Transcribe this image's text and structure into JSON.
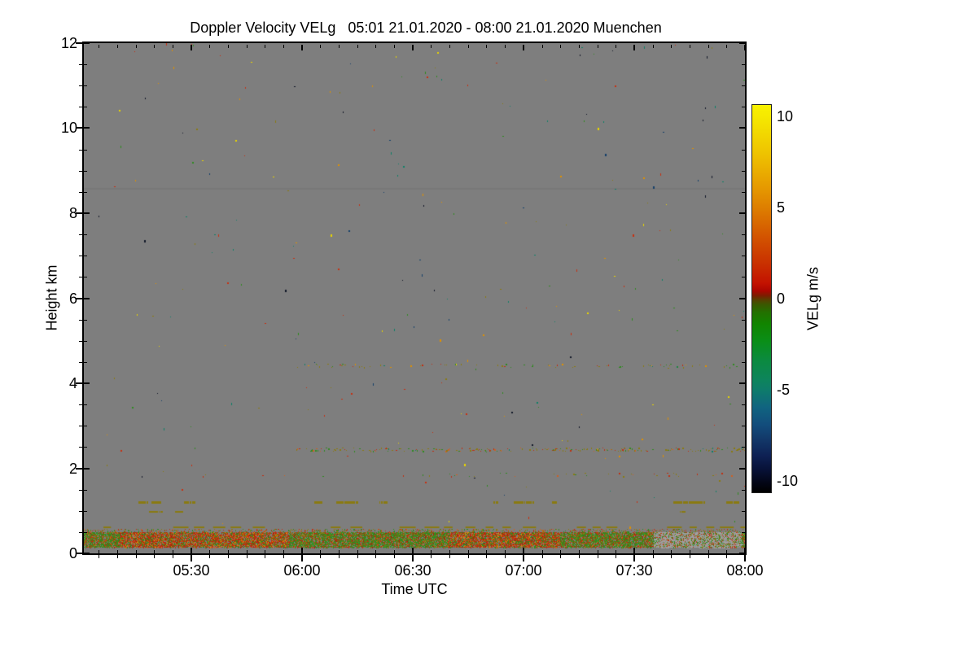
{
  "title": "Doppler Velocity VELg   05:01 21.01.2020 - 08:00 21.01.2020 Muenchen",
  "axes": {
    "x": {
      "label": "Time UTC",
      "start_minutes": 301,
      "end_minutes": 480,
      "minor_step_minutes": 5,
      "major_ticks": [
        {
          "minutes": 330,
          "label": "05:30"
        },
        {
          "minutes": 360,
          "label": "06:00"
        },
        {
          "minutes": 390,
          "label": "06:30"
        },
        {
          "minutes": 420,
          "label": "07:00"
        },
        {
          "minutes": 450,
          "label": "07:30"
        },
        {
          "minutes": 480,
          "label": "08:00"
        }
      ]
    },
    "y": {
      "label": "Height km",
      "min": 0,
      "max": 12,
      "major_step": 2,
      "minor_step": 0.5,
      "major_ticks": [
        {
          "value": 0,
          "label": "0"
        },
        {
          "value": 2,
          "label": "2"
        },
        {
          "value": 4,
          "label": "4"
        },
        {
          "value": 6,
          "label": "6"
        },
        {
          "value": 8,
          "label": "8"
        },
        {
          "value": 10,
          "label": "10"
        },
        {
          "value": 12,
          "label": "12"
        }
      ]
    }
  },
  "plot": {
    "background": "#7e7e7e",
    "frame_color": "#000000"
  },
  "colorbar": {
    "label": "VELg m/s",
    "vmin": -10.67,
    "vmax": 10.67,
    "minor_step": 1,
    "major_ticks": [
      {
        "value": 10,
        "label": "10"
      },
      {
        "value": 5,
        "label": "5"
      },
      {
        "value": 0,
        "label": "0"
      },
      {
        "value": -5,
        "label": "-5"
      },
      {
        "value": -10,
        "label": "-10"
      }
    ],
    "gradient": [
      [
        0.0,
        "#f9f200"
      ],
      [
        0.03,
        "#f5e900"
      ],
      [
        0.13,
        "#eec100"
      ],
      [
        0.21,
        "#e69b00"
      ],
      [
        0.27,
        "#dd7c00"
      ],
      [
        0.34,
        "#d35400"
      ],
      [
        0.41,
        "#c93000"
      ],
      [
        0.46,
        "#c31200"
      ],
      [
        0.48,
        "#ab0600"
      ],
      [
        0.492,
        "#7c1c00"
      ],
      [
        0.503,
        "#564000"
      ],
      [
        0.515,
        "#3a5800"
      ],
      [
        0.535,
        "#237000"
      ],
      [
        0.565,
        "#118400"
      ],
      [
        0.61,
        "#0a8e18"
      ],
      [
        0.66,
        "#0b8a40"
      ],
      [
        0.71,
        "#0d845c"
      ],
      [
        0.735,
        "#0e7c6a"
      ],
      [
        0.78,
        "#106480"
      ],
      [
        0.825,
        "#124d7c"
      ],
      [
        0.865,
        "#123768"
      ],
      [
        0.905,
        "#0e2154"
      ],
      [
        0.945,
        "#071034"
      ],
      [
        0.975,
        "#030616"
      ],
      [
        1.0,
        "#000000"
      ]
    ]
  },
  "chart_data": {
    "type": "heatmap",
    "title": "Doppler Velocity VELg   05:01 21.01.2020 - 08:00 21.01.2020 Muenchen",
    "xlabel": "Time UTC",
    "ylabel": "Height km",
    "x_range": [
      "05:01",
      "08:00"
    ],
    "x_tick_labels": [
      "05:30",
      "06:00",
      "06:30",
      "07:00",
      "07:30",
      "08:00"
    ],
    "y_range_km": [
      0,
      12
    ],
    "y_tick_labels": [
      "0",
      "2",
      "4",
      "6",
      "8",
      "10",
      "12"
    ],
    "value_label": "VELg m/s",
    "value_range": [
      -10.67,
      10.67
    ],
    "colorbar_tick_labels": [
      "10",
      "5",
      "0",
      "-5",
      "-10"
    ],
    "no_data_color_note": "uniform gray background = no signal",
    "features": [
      {
        "height_km": [
          0.14,
          0.5
        ],
        "time": [
          "05:01",
          "08:00"
        ],
        "description": "Dense near-surface echo band of mixed green (VELg ~ -1 to -3 m/s) and red (VELg ~ +1 to +3 m/s) speckle; red dominant ~05:15-05:55 and ~06:40-07:10; grayish streaky gaps after ~07:35"
      },
      {
        "height_km": 0.63,
        "time": [
          "05:05",
          "08:00"
        ],
        "description": "Intermittent olive dashed layer, VELg near 0 m/s"
      },
      {
        "height_km": 1.0,
        "time": [
          "05:20",
          "05:30"
        ],
        "description": "Short olive dash segments, VELg near 0 m/s"
      },
      {
        "height_km": 1.22,
        "time": [
          "05:16",
          "08:00"
        ],
        "description": "Broken olive dashed layer segments, VELg near 0 m/s"
      },
      {
        "height_km": 1.86,
        "time": [
          "06:30",
          "08:00"
        ],
        "description": "Sparse speckle layer, olive/green/red"
      },
      {
        "height_km": 2.45,
        "time": [
          "06:00",
          "08:00"
        ],
        "description": "Thin speckled layer, olive/green/red/orange"
      },
      {
        "height_km": 4.42,
        "time": [
          "06:00",
          "08:00"
        ],
        "description": "Thin sparse speckled layer, olive/green/orange/red"
      },
      {
        "height_km": 8.6,
        "time": [
          "05:01",
          "08:00"
        ],
        "description": "Very faint slightly darker gray horizontal line"
      },
      {
        "height_km": [
          0.5,
          12
        ],
        "description": "Isolated random noise pixels (yellow, orange, red, green, teal, navy, black) scattered in clear air"
      }
    ],
    "render": {
      "seed": 1234567,
      "palettes": {
        "surface_green": [
          [
            "#2f8b1f",
            38
          ],
          [
            "#3f9427",
            14
          ],
          [
            "#c03010",
            16
          ],
          [
            "#a42508",
            7
          ],
          [
            "#8a7a10",
            12
          ],
          [
            "#d06020",
            5
          ],
          [
            "#667012",
            8
          ]
        ],
        "surface_red": [
          [
            "#c03010",
            36
          ],
          [
            "#a42508",
            14
          ],
          [
            "#d06020",
            12
          ],
          [
            "#2f8b1f",
            22
          ],
          [
            "#8a7a10",
            11
          ],
          [
            "#e09000",
            5
          ]
        ],
        "surface_gray": [
          [
            "#a0a0a0",
            40
          ],
          [
            "#909090",
            18
          ],
          [
            "#2f8b1f",
            16
          ],
          [
            "#c03010",
            14
          ],
          [
            "#8a7a10",
            12
          ]
        ],
        "sparse_top": [
          [
            "#8a7a10",
            30
          ],
          [
            "#2f8b1f",
            30
          ],
          [
            "#c03010",
            25
          ],
          [
            "#d06020",
            15
          ]
        ],
        "layer_mix": [
          [
            "#8a7a10",
            45
          ],
          [
            "#2f8b1f",
            20
          ],
          [
            "#c03010",
            20
          ],
          [
            "#d06020",
            10
          ],
          [
            "#0e8068",
            5
          ]
        ],
        "layer_mix2": [
          [
            "#8a7a10",
            40
          ],
          [
            "#2f8b1f",
            25
          ],
          [
            "#c03010",
            15
          ],
          [
            "#e09000",
            15
          ],
          [
            "#0e8068",
            5
          ]
        ],
        "noise": [
          [
            "#e8d400",
            13
          ],
          [
            "#e09000",
            16
          ],
          [
            "#c83010",
            16
          ],
          [
            "#2f8b1f",
            16
          ],
          [
            "#0e8068",
            10
          ],
          [
            "#15406a",
            8
          ],
          [
            "#101828",
            11
          ],
          [
            "#8a7a10",
            10
          ]
        ]
      },
      "layers": [
        {
          "type": "hline",
          "km": 8.6,
          "color": "#787878",
          "thickness": 2
        },
        {
          "type": "row",
          "km": 1.86,
          "x": [
            0.1,
            0.5
          ],
          "density": 0.025,
          "jitter": 2,
          "palette": "layer_mix"
        },
        {
          "type": "row",
          "km": 1.86,
          "x": [
            0.5,
            1.0
          ],
          "density": 0.1,
          "jitter": 2,
          "palette": "layer_mix"
        },
        {
          "type": "row",
          "km": 2.45,
          "x": [
            0.32,
            1.0
          ],
          "density": 0.38,
          "jitter": 2,
          "palette": "layer_mix"
        },
        {
          "type": "row",
          "km": 4.42,
          "x": [
            0.32,
            1.0
          ],
          "density": 0.14,
          "jitter": 2,
          "palette": "layer_mix2"
        },
        {
          "type": "noise",
          "count": 250,
          "palette": "noise"
        },
        {
          "type": "dashrow",
          "km": 0.63,
          "x": [
            0.03,
            1.0
          ],
          "thickness": 2,
          "color": "#8a7a10",
          "dash": [
            8,
            22
          ],
          "gap": [
            5,
            18
          ]
        },
        {
          "type": "segments",
          "km": 1.22,
          "thickness": 3,
          "color": "#8a7a10",
          "list": [
            [
              0.0825,
              0.0973
            ],
            [
              0.1022,
              0.117
            ],
            [
              0.1515,
              0.1687
            ],
            [
              0.3485,
              0.3608
            ],
            [
              0.3818,
              0.415
            ],
            [
              0.447,
              0.4594
            ],
            [
              0.6195,
              0.6269
            ],
            [
              0.6502,
              0.681
            ],
            [
              0.7081,
              0.7155
            ],
            [
              0.8904,
              0.9397
            ],
            [
              0.9717,
              0.9914
            ]
          ]
        },
        {
          "type": "segments",
          "km": 1.0,
          "thickness": 2,
          "color": "#8a7a10",
          "list": [
            [
              0.0985,
              0.1194
            ],
            [
              0.1379,
              0.1502
            ],
            [
              0.902,
              0.91
            ]
          ]
        },
        {
          "type": "band",
          "km": [
            0.5,
            0.58
          ],
          "x": [
            0,
            1
          ],
          "density": 0.2,
          "palette": "sparse_top"
        },
        {
          "type": "band",
          "km": [
            0.14,
            0.5
          ],
          "x": [
            0,
            1
          ],
          "density": 0.82,
          "palette": "surface_green",
          "zones": [
            {
              "x": [
                0.055,
                0.31
              ],
              "palette": "surface_red"
            },
            {
              "x": [
                0.55,
                0.72
              ],
              "palette": "surface_red"
            },
            {
              "x": [
                0.862,
                0.995
              ],
              "palette": "surface_gray",
              "streaky": true
            }
          ]
        }
      ]
    }
  }
}
